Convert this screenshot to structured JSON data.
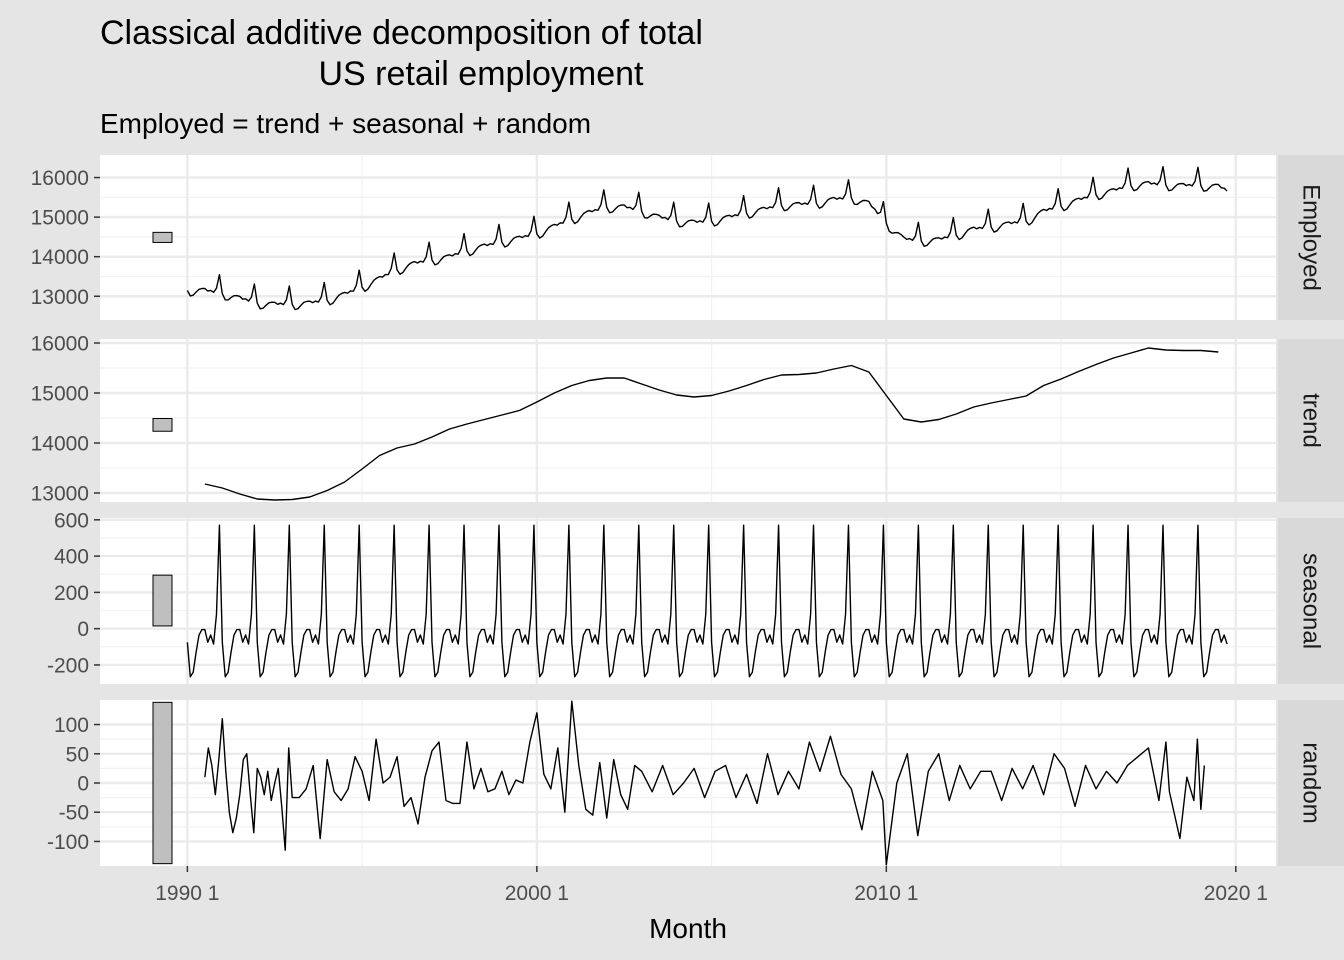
{
  "chart_data": {
    "type": "line",
    "title_lines": [
      "Classical additive decomposition of total",
      "US retail employment"
    ],
    "subtitle": "Employed = trend + seasonal + random",
    "xlabel": "Month",
    "x_range": [
      1987.5,
      2021.15
    ],
    "x_ticks": [
      {
        "value": 1990,
        "label": "1990 1"
      },
      {
        "value": 2000,
        "label": "2000 1"
      },
      {
        "value": 2010,
        "label": "2010 1"
      },
      {
        "value": 2020,
        "label": "2020 1"
      }
    ],
    "grid": true,
    "legend": "none",
    "scale_bar_note": "grey rectangles at left of each facet mark equal data ranges",
    "line_color": "#000000",
    "facets": [
      {
        "name": "Employed",
        "ylim": [
          12400,
          16570
        ],
        "y_ticks": [
          {
            "value": 13000,
            "label": "13000"
          },
          {
            "value": 14000,
            "label": "14000"
          },
          {
            "value": 15000,
            "label": "15000"
          },
          {
            "value": 16000,
            "label": "16000"
          }
        ],
        "scale_bar": [
          14360,
          14615
        ],
        "monthly_start": 1990.0,
        "trend_base": {
          "x": [
            1990.0,
            1990.5,
            1991.0,
            1991.5,
            1992.0,
            1992.5,
            1993.0,
            1993.5,
            1994.0,
            1994.5,
            1995.0,
            1995.5,
            1996.0,
            1996.5,
            1997.0,
            1997.5,
            1998.0,
            1998.5,
            1999.0,
            1999.5,
            2000.0,
            2000.5,
            2001.0,
            2001.5,
            2002.0,
            2002.5,
            2003.0,
            2003.5,
            2004.0,
            2004.5,
            2005.0,
            2005.5,
            2006.0,
            2006.5,
            2007.0,
            2007.5,
            2008.0,
            2008.5,
            2009.0,
            2009.5,
            2010.0,
            2010.5,
            2011.0,
            2011.5,
            2012.0,
            2012.5,
            2013.0,
            2013.5,
            2014.0,
            2014.5,
            2015.0,
            2015.5,
            2016.0,
            2016.5,
            2017.0,
            2017.5,
            2018.0,
            2018.5,
            2019.0,
            2019.5,
            2019.8
          ],
          "y": [
            13200,
            13200,
            13120,
            13000,
            12880,
            12850,
            12850,
            12880,
            12950,
            13100,
            13280,
            13500,
            13720,
            13880,
            13970,
            14050,
            14200,
            14320,
            14420,
            14520,
            14630,
            14820,
            15000,
            15170,
            15300,
            15310,
            15200,
            15050,
            14950,
            14920,
            14950,
            15050,
            15150,
            15250,
            15350,
            15370,
            15400,
            15500,
            15540,
            15400,
            14900,
            14500,
            14450,
            14480,
            14600,
            14750,
            14800,
            14880,
            14950,
            15200,
            15330,
            15480,
            15620,
            15720,
            15850,
            15900,
            15860,
            15850,
            15850,
            15830,
            15700
          ]
        }
      },
      {
        "name": "trend",
        "ylim": [
          12820,
          16080
        ],
        "y_ticks": [
          {
            "value": 13000,
            "label": "13000"
          },
          {
            "value": 14000,
            "label": "14000"
          },
          {
            "value": 15000,
            "label": "15000"
          },
          {
            "value": 16000,
            "label": "16000"
          }
        ],
        "scale_bar": [
          14235,
          14490
        ],
        "x": [
          1990.5,
          1991.0,
          1991.5,
          1992.0,
          1992.5,
          1993.0,
          1993.5,
          1994.0,
          1994.5,
          1995.0,
          1995.5,
          1996.0,
          1996.5,
          1997.0,
          1997.5,
          1998.0,
          1998.5,
          1999.0,
          1999.5,
          2000.0,
          2000.5,
          2001.0,
          2001.5,
          2002.0,
          2002.5,
          2003.0,
          2003.5,
          2004.0,
          2004.5,
          2005.0,
          2005.5,
          2006.0,
          2006.5,
          2007.0,
          2007.5,
          2008.0,
          2008.5,
          2009.0,
          2009.5,
          2010.0,
          2010.5,
          2011.0,
          2011.5,
          2012.0,
          2012.5,
          2013.0,
          2013.5,
          2014.0,
          2014.5,
          2015.0,
          2015.5,
          2016.0,
          2016.5,
          2017.0,
          2017.5,
          2018.0,
          2018.5,
          2019.0,
          2019.5
        ],
        "y": [
          13180,
          13100,
          12980,
          12880,
          12860,
          12870,
          12920,
          13050,
          13220,
          13480,
          13750,
          13900,
          13980,
          14120,
          14280,
          14380,
          14470,
          14560,
          14650,
          14820,
          15000,
          15150,
          15250,
          15300,
          15300,
          15180,
          15060,
          14960,
          14920,
          14950,
          15040,
          15150,
          15270,
          15360,
          15370,
          15400,
          15480,
          15550,
          15420,
          14950,
          14480,
          14420,
          14470,
          14580,
          14720,
          14800,
          14870,
          14940,
          15150,
          15280,
          15430,
          15570,
          15700,
          15800,
          15900,
          15860,
          15850,
          15850,
          15820
        ]
      },
      {
        "name": "seasonal",
        "ylim": [
          -305,
          610
        ],
        "y_ticks": [
          {
            "value": -200,
            "label": "-200"
          },
          {
            "value": 0,
            "label": "0"
          },
          {
            "value": 200,
            "label": "200"
          },
          {
            "value": 400,
            "label": "400"
          },
          {
            "value": 600,
            "label": "600"
          }
        ],
        "scale_bar": [
          15,
          295
        ],
        "monthly_start": 1990.0,
        "pattern_by_month": [
          -75,
          -265,
          -240,
          -130,
          -35,
          -5,
          -5,
          -75,
          -35,
          -85,
          80,
          570
        ]
      },
      {
        "name": "random",
        "ylim": [
          -142,
          142
        ],
        "y_ticks": [
          {
            "value": -100,
            "label": "-100"
          },
          {
            "value": -50,
            "label": "-50"
          },
          {
            "value": 0,
            "label": "0"
          },
          {
            "value": 50,
            "label": "50"
          },
          {
            "value": 100,
            "label": "100"
          }
        ],
        "scale_bar": [
          -138,
          138
        ],
        "x": [
          1990.5,
          1990.6,
          1990.7,
          1990.8,
          1990.9,
          1991.0,
          1991.1,
          1991.2,
          1991.3,
          1991.4,
          1991.5,
          1991.6,
          1991.7,
          1991.8,
          1991.9,
          1992.0,
          1992.1,
          1992.2,
          1992.3,
          1992.4,
          1992.5,
          1992.6,
          1992.7,
          1992.8,
          1992.9,
          1993.0,
          1993.2,
          1993.4,
          1993.6,
          1993.8,
          1994.0,
          1994.2,
          1994.4,
          1994.6,
          1994.8,
          1995.0,
          1995.2,
          1995.4,
          1995.6,
          1995.8,
          1996.0,
          1996.2,
          1996.4,
          1996.6,
          1996.8,
          1997.0,
          1997.2,
          1997.4,
          1997.6,
          1997.8,
          1998.0,
          1998.2,
          1998.4,
          1998.6,
          1998.8,
          1999.0,
          1999.2,
          1999.4,
          1999.6,
          1999.8,
          2000.0,
          2000.2,
          2000.4,
          2000.6,
          2000.8,
          2001.0,
          2001.2,
          2001.4,
          2001.6,
          2001.8,
          2002.0,
          2002.2,
          2002.4,
          2002.6,
          2002.8,
          2003.0,
          2003.3,
          2003.6,
          2003.9,
          2004.2,
          2004.5,
          2004.8,
          2005.1,
          2005.4,
          2005.7,
          2006.0,
          2006.3,
          2006.6,
          2006.9,
          2007.2,
          2007.5,
          2007.8,
          2008.1,
          2008.4,
          2008.7,
          2009.0,
          2009.3,
          2009.6,
          2009.9,
          2010.0,
          2010.3,
          2010.6,
          2010.9,
          2011.2,
          2011.5,
          2011.8,
          2012.1,
          2012.4,
          2012.7,
          2013.0,
          2013.3,
          2013.6,
          2013.9,
          2014.2,
          2014.5,
          2014.8,
          2015.1,
          2015.4,
          2015.7,
          2016.0,
          2016.3,
          2016.6,
          2016.9,
          2017.2,
          2017.5,
          2017.8,
          2018.0,
          2018.1,
          2018.4,
          2018.6,
          2018.8,
          2018.9,
          2019.0,
          2019.1
        ],
        "y": [
          10,
          60,
          30,
          -20,
          40,
          110,
          20,
          -50,
          -85,
          -60,
          -20,
          40,
          50,
          -20,
          -85,
          25,
          10,
          -20,
          20,
          -30,
          0,
          25,
          -40,
          -115,
          60,
          -25,
          -25,
          -10,
          30,
          -95,
          40,
          -15,
          -30,
          -10,
          45,
          20,
          -30,
          75,
          0,
          10,
          45,
          -40,
          -25,
          -70,
          10,
          55,
          70,
          -30,
          -35,
          -35,
          70,
          -10,
          25,
          -15,
          -10,
          20,
          -20,
          5,
          0,
          70,
          120,
          15,
          -10,
          60,
          -50,
          140,
          30,
          -45,
          -55,
          35,
          -60,
          40,
          -20,
          -45,
          30,
          20,
          -15,
          30,
          -20,
          0,
          25,
          -25,
          20,
          30,
          -25,
          15,
          -35,
          50,
          -20,
          20,
          -10,
          70,
          20,
          80,
          15,
          -10,
          -80,
          20,
          -30,
          -140,
          0,
          50,
          -90,
          20,
          50,
          -30,
          30,
          -10,
          20,
          20,
          -30,
          25,
          -10,
          30,
          -20,
          50,
          25,
          -40,
          30,
          -10,
          20,
          0,
          30,
          45,
          60,
          -30,
          70,
          -15,
          -95,
          10,
          -30,
          75,
          -45,
          30
        ]
      }
    ]
  }
}
